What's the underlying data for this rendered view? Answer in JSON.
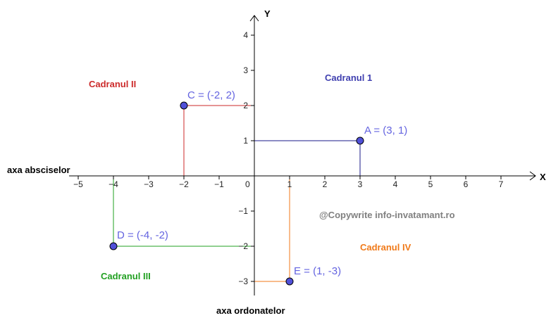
{
  "axes": {
    "x_name": "X",
    "y_name": "Y",
    "x_caption": "axa absciselor",
    "y_caption": "axa ordonatelor",
    "x_range": [
      -5,
      7
    ],
    "y_range": [
      -3,
      4
    ],
    "x_ticks": [
      "−5",
      "−4",
      "−3",
      "−2",
      "−1",
      "0",
      "1",
      "2",
      "3",
      "4",
      "5",
      "6",
      "7"
    ],
    "y_ticks": [
      "4",
      "3",
      "2",
      "1",
      "−1",
      "−2",
      "−3"
    ]
  },
  "quadrants": [
    {
      "label": "Cadranul 1",
      "color": "#4040b0"
    },
    {
      "label": "Cadranul II",
      "color": "#cc2a2a"
    },
    {
      "label": "Cadranul III",
      "color": "#22a022"
    },
    {
      "label": "Cadranul IV",
      "color": "#f07a1a"
    }
  ],
  "points": [
    {
      "label": "A = (3, 1)",
      "x": 3,
      "y": 1,
      "color": "#1a1a8a"
    },
    {
      "label": "C = (-2, 2)",
      "x": -2,
      "y": 2,
      "color": "#cc2a2a"
    },
    {
      "label": "D = (-4, -2)",
      "x": -4,
      "y": -2,
      "color": "#22a022"
    },
    {
      "label": "E = (1, -3)",
      "x": 1,
      "y": -3,
      "color": "#f07a1a"
    }
  ],
  "point_fill": "#5050d8",
  "point_label_color": "#6464e0",
  "watermark": "@Copywrite info-invatamant.ro"
}
